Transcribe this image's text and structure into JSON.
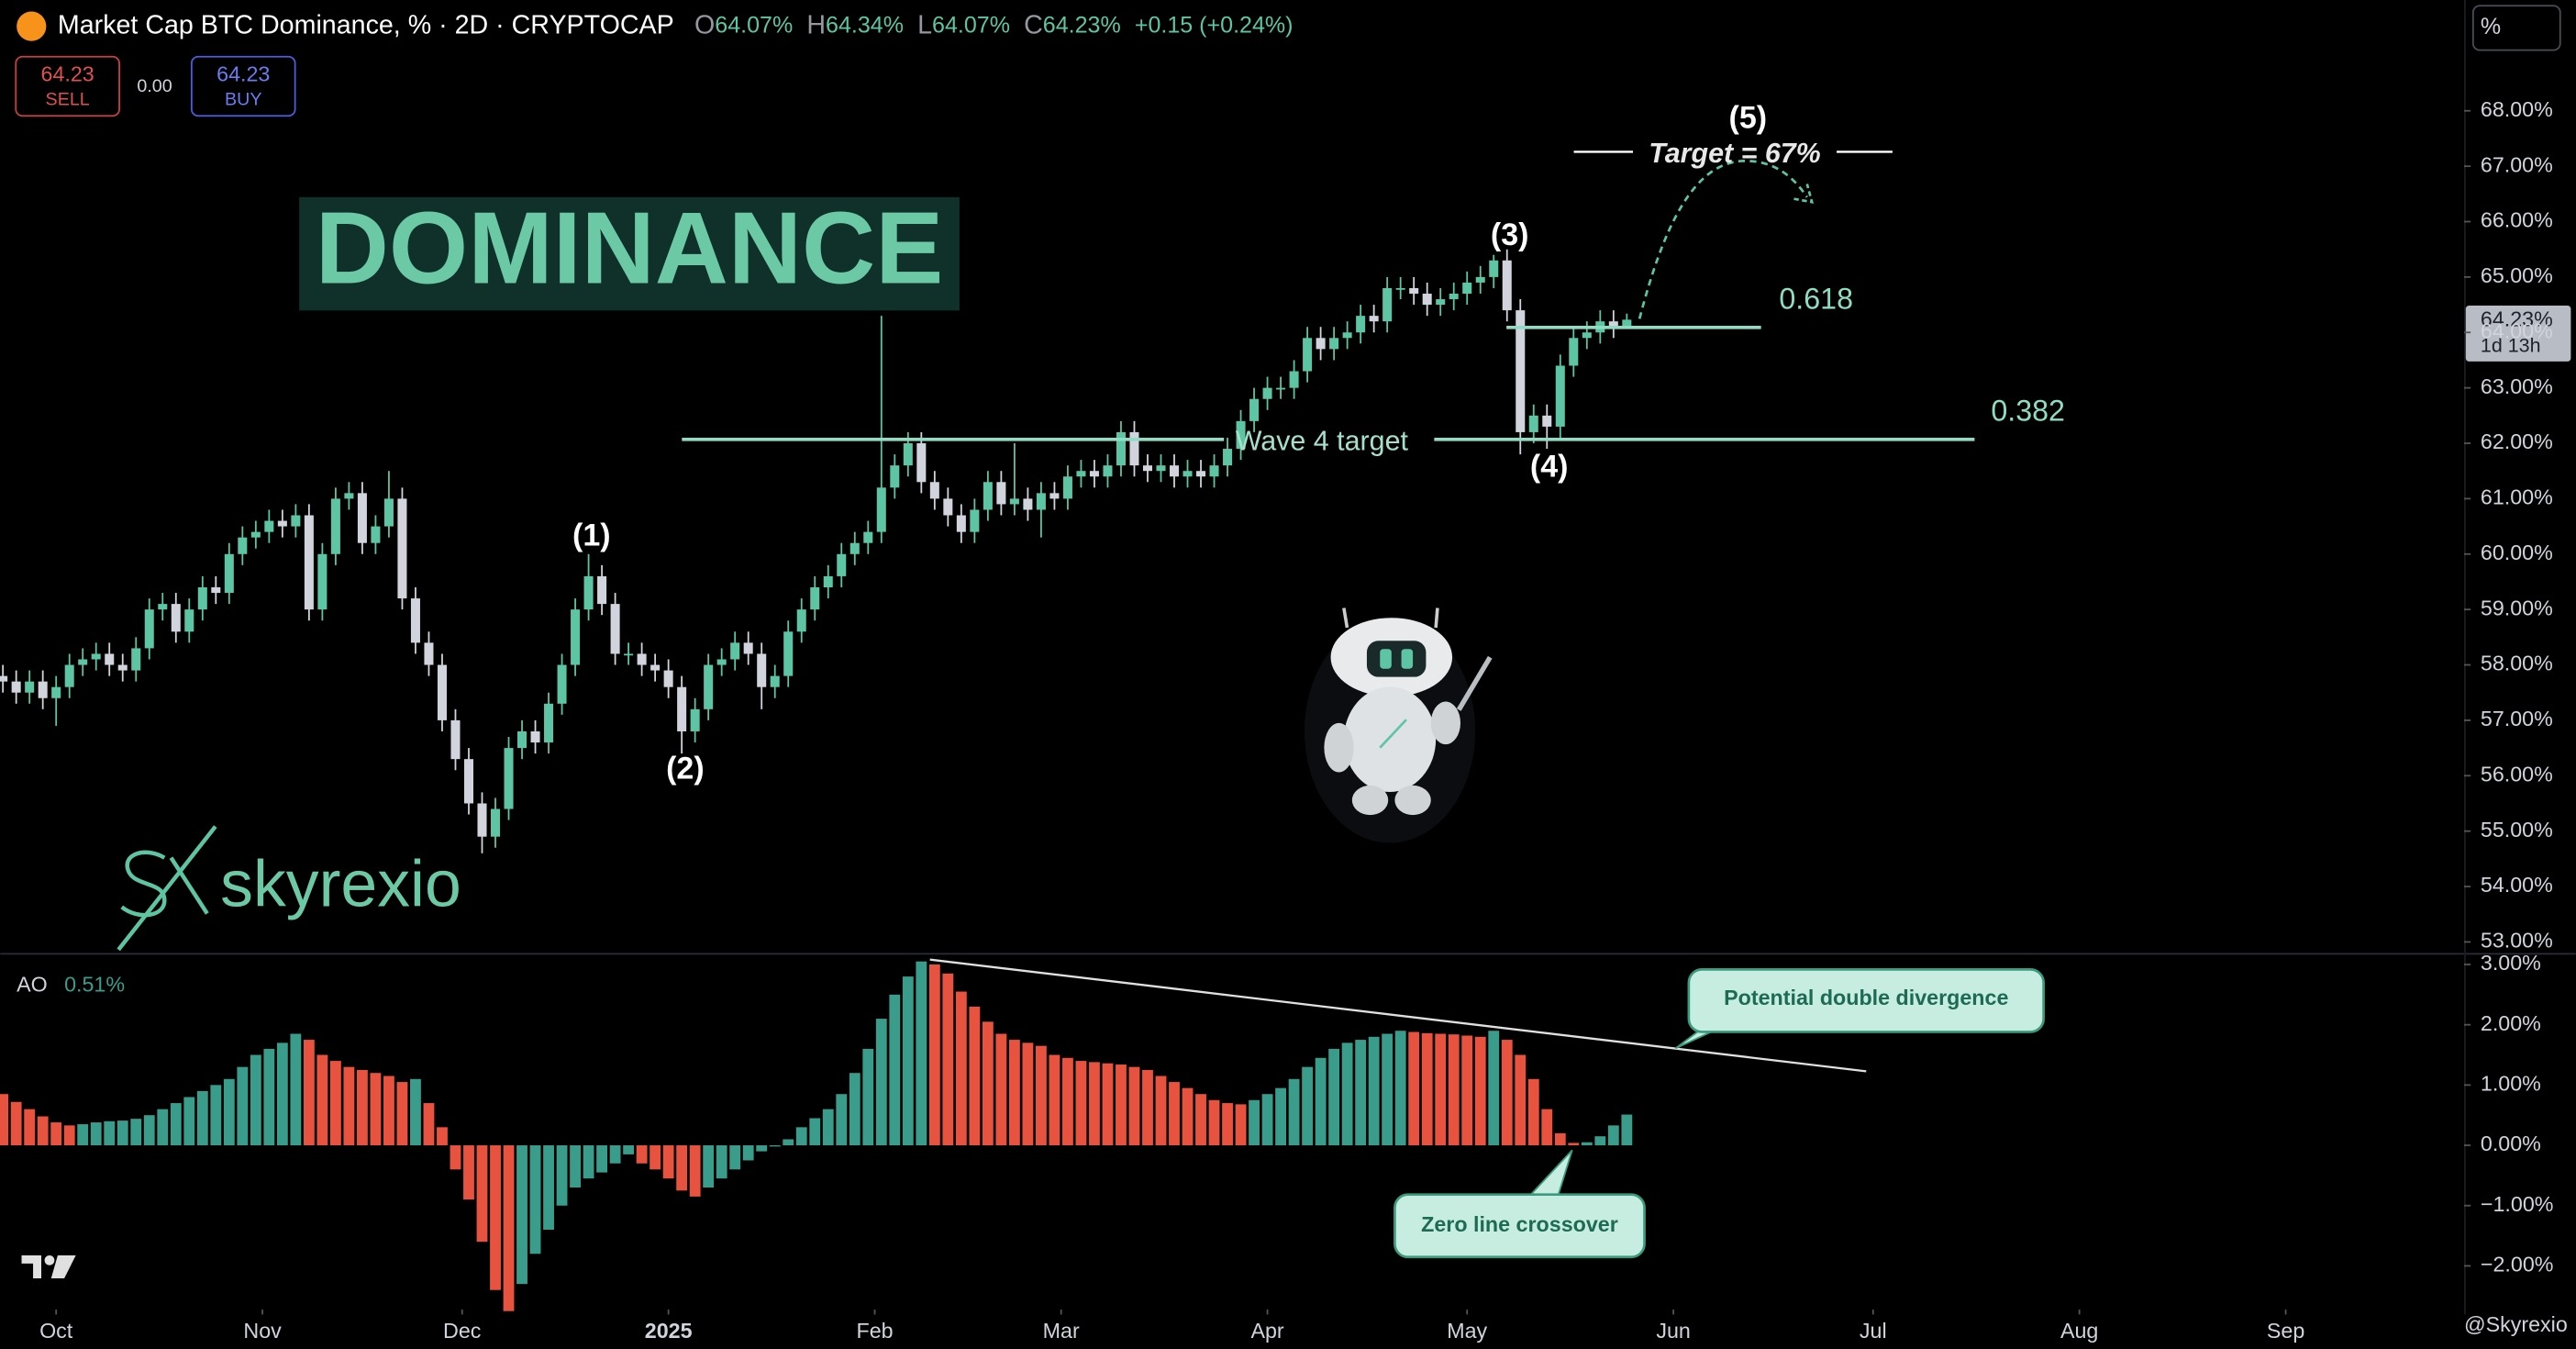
{
  "ui": {
    "symbol_title": "Market Cap BTC Dominance, % · 2D · CRYPTOCAP",
    "ohlc_keys": [
      "O",
      "H",
      "L",
      "C"
    ],
    "ohlc_values": [
      "64.07%",
      "64.34%",
      "64.07%",
      "64.23%"
    ],
    "change": "+0.15 (+0.24%)",
    "sell_price": "64.23",
    "sell": "SELL",
    "spread": "0.00",
    "buy_price": "64.23",
    "buy": "BUY",
    "scale_button": "%",
    "last_price": "64.23%",
    "countdown": "1d 13h",
    "logo_text": "skyrexio",
    "watermark": "@Skyrexio"
  },
  "chart_data": [
    {
      "type": "candlestick",
      "title": "DOMINANCE",
      "up_color": "#5ec5a4",
      "down_color": "#d1d4dc",
      "grid": false,
      "x": [
        -8,
        -6,
        -4,
        -2,
        0,
        2,
        4,
        6,
        8,
        10,
        12,
        14,
        16,
        18,
        20,
        22,
        24,
        26,
        28,
        30,
        32,
        34,
        36,
        38,
        40,
        42,
        44,
        46,
        48,
        50,
        52,
        54,
        56,
        58,
        60,
        62,
        64,
        66,
        68,
        70,
        72,
        74,
        76,
        78,
        80,
        82,
        84,
        86,
        88,
        90,
        92,
        94,
        96,
        98,
        100,
        102,
        104,
        106,
        108,
        110,
        112,
        114,
        116,
        118,
        120,
        122,
        124,
        126,
        128,
        130,
        132,
        134,
        136,
        138,
        140,
        142,
        144,
        146,
        148,
        150,
        152,
        154,
        156,
        158,
        160,
        162,
        164,
        166,
        168,
        170,
        172,
        174,
        176,
        178,
        180,
        182,
        184,
        186,
        188,
        190,
        192,
        194,
        196,
        198,
        200,
        202,
        204,
        206,
        208,
        210,
        212,
        214,
        216,
        218,
        220,
        222,
        224,
        226,
        228,
        230,
        232,
        234,
        236
      ],
      "open": [
        57.8,
        57.7,
        57.5,
        57.7,
        57.4,
        57.6,
        58.0,
        58.1,
        58.2,
        58.0,
        57.9,
        58.3,
        59.0,
        59.1,
        58.6,
        59.0,
        59.4,
        59.3,
        60.0,
        60.3,
        60.4,
        60.6,
        60.5,
        60.7,
        59.0,
        60.0,
        61.0,
        61.1,
        60.2,
        60.5,
        61.0,
        59.2,
        58.4,
        58.0,
        57.0,
        56.3,
        55.5,
        54.9,
        55.4,
        56.5,
        56.8,
        56.6,
        57.3,
        58.0,
        59.0,
        59.6,
        59.1,
        58.2,
        58.2,
        58.0,
        57.9,
        57.6,
        56.8,
        57.2,
        58.0,
        58.1,
        58.4,
        58.2,
        57.6,
        57.8,
        58.6,
        59.0,
        59.4,
        59.6,
        60.0,
        60.2,
        60.4,
        61.2,
        61.6,
        62.0,
        61.3,
        61.0,
        60.7,
        60.4,
        60.8,
        61.3,
        60.9,
        61.0,
        60.8,
        61.1,
        61.0,
        61.4,
        61.5,
        61.4,
        61.6,
        62.2,
        61.6,
        61.5,
        61.6,
        61.4,
        61.5,
        61.4,
        61.6,
        61.9,
        62.4,
        62.8,
        63.0,
        63.0,
        63.3,
        63.9,
        63.7,
        63.9,
        64.0,
        64.3,
        64.2,
        64.8,
        64.8,
        64.7,
        64.5,
        64.6,
        64.7,
        64.9,
        65.0,
        65.3,
        64.4,
        62.2,
        62.5,
        62.3,
        63.4,
        63.9,
        64.0,
        64.2,
        64.07
      ],
      "high": [
        58.0,
        57.9,
        57.9,
        57.9,
        57.8,
        58.2,
        58.3,
        58.4,
        58.4,
        58.2,
        58.5,
        59.2,
        59.3,
        59.3,
        59.2,
        59.6,
        59.6,
        60.2,
        60.5,
        60.6,
        60.8,
        60.8,
        60.9,
        60.9,
        60.2,
        61.2,
        61.3,
        61.3,
        60.7,
        61.5,
        61.2,
        59.4,
        58.6,
        58.2,
        57.2,
        56.5,
        55.7,
        55.6,
        56.7,
        57.0,
        57.0,
        57.5,
        58.2,
        59.2,
        60.0,
        59.8,
        59.3,
        58.4,
        58.4,
        58.2,
        58.1,
        57.8,
        57.4,
        58.2,
        58.3,
        58.6,
        58.6,
        58.4,
        58.0,
        58.8,
        59.2,
        59.6,
        59.8,
        60.2,
        60.4,
        60.6,
        64.3,
        61.8,
        62.2,
        62.2,
        61.5,
        61.2,
        60.9,
        61.0,
        61.5,
        61.5,
        62.0,
        61.2,
        61.3,
        61.3,
        61.6,
        61.7,
        61.7,
        61.8,
        62.4,
        62.4,
        61.8,
        61.8,
        61.8,
        61.7,
        61.7,
        61.8,
        62.1,
        62.6,
        63.0,
        63.2,
        63.2,
        63.5,
        64.1,
        64.1,
        64.1,
        64.2,
        64.5,
        64.5,
        65.0,
        65.0,
        65.0,
        64.9,
        64.8,
        64.9,
        65.1,
        65.2,
        65.4,
        65.5,
        64.6,
        62.7,
        62.7,
        63.6,
        64.1,
        64.2,
        64.4,
        64.4,
        64.34
      ],
      "low": [
        57.5,
        57.3,
        57.3,
        57.2,
        56.9,
        57.4,
        57.8,
        57.9,
        57.8,
        57.7,
        57.7,
        58.1,
        58.8,
        58.4,
        58.4,
        58.8,
        59.1,
        59.1,
        59.8,
        60.1,
        60.2,
        60.3,
        60.3,
        58.8,
        58.8,
        59.8,
        60.8,
        60.0,
        60.0,
        60.3,
        59.0,
        58.2,
        57.8,
        56.8,
        56.1,
        55.3,
        54.6,
        54.7,
        55.2,
        56.3,
        56.4,
        56.4,
        57.1,
        57.8,
        58.8,
        58.9,
        58.0,
        58.0,
        57.8,
        57.7,
        57.4,
        56.4,
        56.6,
        57.0,
        57.8,
        57.9,
        58.0,
        57.2,
        57.4,
        57.6,
        58.4,
        58.8,
        59.2,
        59.4,
        59.8,
        60.0,
        60.2,
        61.0,
        61.4,
        61.1,
        60.8,
        60.5,
        60.2,
        60.2,
        60.6,
        60.7,
        60.7,
        60.6,
        60.3,
        60.8,
        60.8,
        61.2,
        61.2,
        61.2,
        61.4,
        61.4,
        61.3,
        61.3,
        61.2,
        61.2,
        61.2,
        61.2,
        61.4,
        61.7,
        62.2,
        62.6,
        62.8,
        62.8,
        63.1,
        63.5,
        63.5,
        63.7,
        63.8,
        64.0,
        64.0,
        64.6,
        64.5,
        64.3,
        64.3,
        64.4,
        64.5,
        64.7,
        64.8,
        64.2,
        61.8,
        62.0,
        61.9,
        62.1,
        63.2,
        63.7,
        63.8,
        63.9,
        64.07
      ],
      "close": [
        57.7,
        57.5,
        57.7,
        57.4,
        57.6,
        58.0,
        58.1,
        58.2,
        58.0,
        57.9,
        58.3,
        59.0,
        59.1,
        58.6,
        59.0,
        59.4,
        59.3,
        60.0,
        60.3,
        60.4,
        60.6,
        60.5,
        60.7,
        59.0,
        60.0,
        61.0,
        61.1,
        60.2,
        60.5,
        61.0,
        59.2,
        58.4,
        58.0,
        57.0,
        56.3,
        55.5,
        54.9,
        55.4,
        56.5,
        56.8,
        56.6,
        57.3,
        58.0,
        59.0,
        59.6,
        59.1,
        58.2,
        58.2,
        58.0,
        57.9,
        57.6,
        56.8,
        57.2,
        58.0,
        58.1,
        58.4,
        58.2,
        57.6,
        57.8,
        58.6,
        59.0,
        59.4,
        59.6,
        60.0,
        60.2,
        60.4,
        61.2,
        61.6,
        62.0,
        61.3,
        61.0,
        60.7,
        60.4,
        60.8,
        61.3,
        60.9,
        61.0,
        60.8,
        61.1,
        61.0,
        61.4,
        61.5,
        61.4,
        61.6,
        62.2,
        61.6,
        61.5,
        61.6,
        61.4,
        61.5,
        61.4,
        61.6,
        61.9,
        62.4,
        62.8,
        63.0,
        63.0,
        63.3,
        63.9,
        63.7,
        63.9,
        64.0,
        64.3,
        64.2,
        64.8,
        64.8,
        64.7,
        64.5,
        64.6,
        64.7,
        64.9,
        65.0,
        65.3,
        64.4,
        62.2,
        62.5,
        62.3,
        63.4,
        63.9,
        64.0,
        64.2,
        64.07,
        64.23
      ],
      "xlim": [
        -8.4,
        361.8
      ],
      "xticks": [
        {
          "value": 0,
          "label": "Oct"
        },
        {
          "value": 31,
          "label": "Nov"
        },
        {
          "value": 61,
          "label": "Dec"
        },
        {
          "value": 92,
          "label": "2025"
        },
        {
          "value": 123,
          "label": "Feb"
        },
        {
          "value": 151,
          "label": "Mar"
        },
        {
          "value": 182,
          "label": "Apr"
        },
        {
          "value": 212,
          "label": "May"
        },
        {
          "value": 243,
          "label": "Jun"
        },
        {
          "value": 273,
          "label": "Jul"
        },
        {
          "value": 304,
          "label": "Aug"
        },
        {
          "value": 335,
          "label": "Sep"
        }
      ],
      "ylim": [
        52.8,
        70
      ],
      "yticks": [
        {
          "value": 53,
          "label": "53.00%"
        },
        {
          "value": 54,
          "label": "54.00%"
        },
        {
          "value": 55,
          "label": "55.00%"
        },
        {
          "value": 56,
          "label": "56.00%"
        },
        {
          "value": 57,
          "label": "57.00%"
        },
        {
          "value": 58,
          "label": "58.00%"
        },
        {
          "value": 59,
          "label": "59.00%"
        },
        {
          "value": 60,
          "label": "60.00%"
        },
        {
          "value": 61,
          "label": "61.00%"
        },
        {
          "value": 62,
          "label": "62.00%"
        },
        {
          "value": 63,
          "label": "63.00%"
        },
        {
          "value": 64,
          "label": "64.00%"
        },
        {
          "value": 65,
          "label": "65.00%"
        },
        {
          "value": 66,
          "label": "66.00%"
        },
        {
          "value": 67,
          "label": "67.00%"
        },
        {
          "value": 68,
          "label": "68.00%"
        }
      ],
      "waves": [
        "(1)",
        "(2)",
        "(3)",
        "(4)",
        "(5)"
      ],
      "target": {
        "label": "Target = 67%",
        "level": 67.26
      },
      "fib_levels": [
        {
          "label": "0.618",
          "level": 64.09
        },
        {
          "label": "0.382",
          "level": 62.07
        }
      ],
      "wave4": {
        "label": "Wave 4 target",
        "level": 62.07
      }
    },
    {
      "type": "bar",
      "title": "AO",
      "value_label": "0.51%",
      "up_color": "#3a9d8c",
      "down_color": "#e8533f",
      "values": [
        0.85,
        0.72,
        0.6,
        0.48,
        0.38,
        0.33,
        0.35,
        0.38,
        0.4,
        0.41,
        0.44,
        0.5,
        0.6,
        0.7,
        0.8,
        0.9,
        1.0,
        1.1,
        1.3,
        1.5,
        1.6,
        1.7,
        1.85,
        1.75,
        1.5,
        1.4,
        1.3,
        1.25,
        1.2,
        1.15,
        1.05,
        1.1,
        0.7,
        0.3,
        -0.4,
        -0.9,
        -1.6,
        -2.4,
        -2.75,
        -2.3,
        -1.8,
        -1.4,
        -1.0,
        -0.7,
        -0.55,
        -0.45,
        -0.3,
        -0.15,
        -0.3,
        -0.4,
        -0.55,
        -0.75,
        -0.85,
        -0.7,
        -0.55,
        -0.4,
        -0.25,
        -0.1,
        -0.02,
        0.1,
        0.3,
        0.45,
        0.6,
        0.85,
        1.2,
        1.6,
        2.1,
        2.5,
        2.8,
        3.05,
        3.0,
        2.85,
        2.55,
        2.3,
        2.05,
        1.85,
        1.75,
        1.7,
        1.65,
        1.5,
        1.45,
        1.4,
        1.38,
        1.36,
        1.34,
        1.3,
        1.25,
        1.15,
        1.05,
        0.95,
        0.85,
        0.75,
        0.7,
        0.68,
        0.75,
        0.85,
        0.95,
        1.1,
        1.3,
        1.45,
        1.6,
        1.7,
        1.75,
        1.8,
        1.85,
        1.9,
        1.88,
        1.86,
        1.85,
        1.84,
        1.82,
        1.8,
        1.9,
        1.75,
        1.5,
        1.1,
        0.6,
        0.2,
        0.04,
        0.05,
        0.15,
        0.33,
        0.51
      ],
      "ylim": [
        -2.67,
        3.19
      ],
      "yticks": [
        {
          "value": 3,
          "label": "3.00%"
        },
        {
          "value": 2,
          "label": "2.00%"
        },
        {
          "value": 1,
          "label": "1.00%"
        },
        {
          "value": 0,
          "label": "0.00%"
        },
        {
          "value": -1,
          "label": "−1.00%"
        },
        {
          "value": -2,
          "label": "−2.00%"
        }
      ],
      "callouts": [
        "Potential double divergence",
        "Zero line crossover"
      ]
    }
  ]
}
